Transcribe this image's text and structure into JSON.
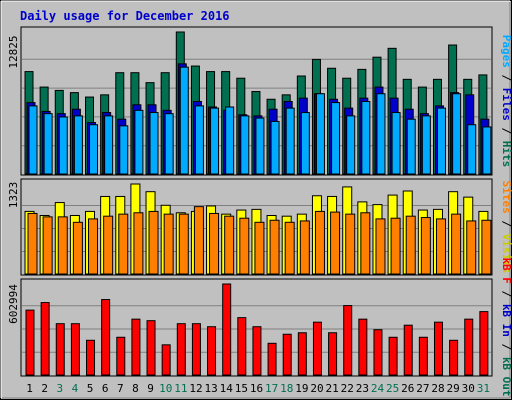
{
  "chart_data": {
    "type": "bar",
    "title": "Daily usage for December 2016",
    "categories": [
      "1",
      "2",
      "3",
      "4",
      "5",
      "6",
      "7",
      "8",
      "9",
      "10",
      "11",
      "12",
      "13",
      "14",
      "15",
      "16",
      "17",
      "18",
      "19",
      "20",
      "21",
      "22",
      "23",
      "24",
      "25",
      "26",
      "27",
      "28",
      "29",
      "30",
      "31"
    ],
    "weekend_days": [
      "3",
      "4",
      "10",
      "11",
      "17",
      "18",
      "24",
      "25",
      "31"
    ],
    "panels": [
      {
        "id": "hits-files-pages",
        "ymax_label": "12825",
        "ymax": 12825,
        "legend": [
          {
            "text": "Pages",
            "color": "#00aaff"
          },
          {
            "text": " / ",
            "color": "#000000"
          },
          {
            "text": "Files",
            "color": "#0000cc"
          },
          {
            "text": " / ",
            "color": "#000000"
          },
          {
            "text": "Hits",
            "color": "#007050"
          }
        ],
        "series": [
          {
            "name": "Hits",
            "color": "#007050",
            "values": [
              9250,
              7850,
              7550,
              7350,
              6950,
              7150,
              9150,
              9150,
              8250,
              9150,
              12825,
              9750,
              9250,
              9250,
              8650,
              7450,
              6750,
              7150,
              8850,
              10350,
              9550,
              8650,
              9450,
              10550,
              11350,
              8550,
              7850,
              8550,
              11650,
              8550,
              8950
            ]
          },
          {
            "name": "Files",
            "color": "#0000cc",
            "values": [
              6450,
              5650,
              5450,
              5850,
              4650,
              5550,
              4950,
              6250,
              6250,
              5750,
              9950,
              6550,
              6050,
              5750,
              5350,
              5250,
              5850,
              6550,
              6850,
              7250,
              6750,
              5950,
              6850,
              7850,
              6850,
              5850,
              5450,
              6150,
              7350,
              7150,
              4950
            ]
          },
          {
            "name": "Pages",
            "color": "#00aaff",
            "values": [
              6150,
              5450,
              5150,
              5250,
              4450,
              5250,
              4350,
              5750,
              5550,
              5450,
              9650,
              6150,
              5950,
              6050,
              5250,
              5050,
              4750,
              5950,
              5550,
              7250,
              6450,
              5250,
              6550,
              7250,
              5550,
              4950,
              5250,
              5950,
              7250,
              4450,
              4250
            ]
          }
        ]
      },
      {
        "id": "visits-sites",
        "ymax_label": "1323",
        "ymax": 1323,
        "legend": [
          {
            "text": "Sites",
            "color": "#ff8000"
          },
          {
            "text": " / ",
            "color": "#000000"
          },
          {
            "text": "Visits",
            "color": "#cccc00"
          }
        ],
        "series": [
          {
            "name": "Visits",
            "color": "#ffff00",
            "values": [
              920,
              860,
              1050,
              860,
              920,
              1140,
              1140,
              1323,
              1210,
              1010,
              900,
              920,
              1000,
              880,
              940,
              950,
              860,
              850,
              880,
              1150,
              1140,
              1280,
              1060,
              1020,
              1160,
              1220,
              940,
              950,
              1210,
              1130,
              920
            ]
          },
          {
            "name": "Sites",
            "color": "#ff8000",
            "values": [
              890,
              840,
              840,
              760,
              810,
              850,
              880,
              900,
              920,
              880,
              880,
              990,
              890,
              850,
              820,
              760,
              790,
              760,
              780,
              920,
              910,
              880,
              900,
              810,
              820,
              850,
              830,
              810,
              880,
              780,
              790
            ]
          }
        ]
      },
      {
        "id": "kbytes",
        "ymax_label": "602994",
        "ymax": 602994,
        "legend": [
          {
            "text": "kB F",
            "color": "#ff0000"
          },
          {
            "text": " / ",
            "color": "#000000"
          },
          {
            "text": "kB In",
            "color": "#0000cc"
          },
          {
            "text": " / ",
            "color": "#000000"
          },
          {
            "text": "kB Out",
            "color": "#007050"
          }
        ],
        "series": [
          {
            "name": "kB F",
            "color": "#ff0000",
            "values": [
              430000,
              480000,
              340000,
              340000,
              230000,
              500000,
              250000,
              370000,
              360000,
              200000,
              340000,
              340000,
              320000,
              602994,
              380000,
              320000,
              210000,
              270000,
              280000,
              350000,
              280000,
              460000,
              370000,
              300000,
              250000,
              330000,
              250000,
              350000,
              230000,
              370000,
              420000
            ]
          }
        ]
      }
    ]
  }
}
